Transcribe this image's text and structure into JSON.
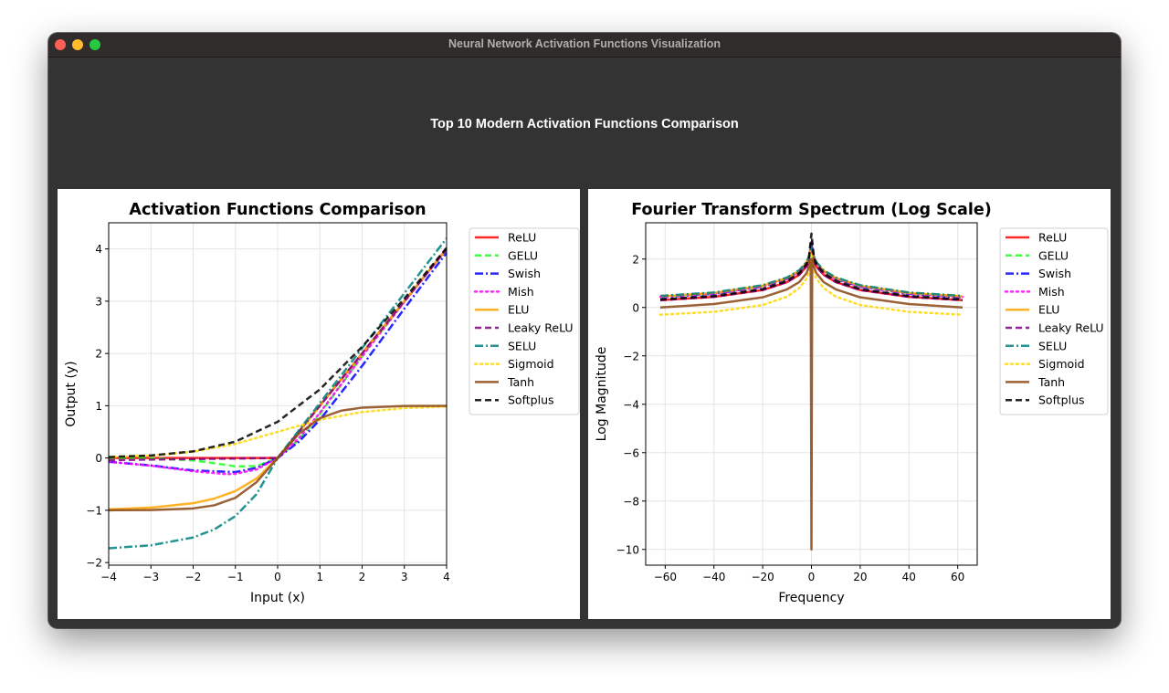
{
  "window": {
    "title": "Neural Network Activation Functions Visualization"
  },
  "header": {
    "title": "Top 10 Modern Activation Functions Comparison"
  },
  "chart_data": [
    {
      "type": "line",
      "title": "Activation Functions Comparison",
      "xlabel": "Input (x)",
      "ylabel": "Output (y)",
      "xlim": [
        -4,
        4
      ],
      "ylim": [
        -2.05,
        4.5
      ],
      "xticks": [
        "−4",
        "−3",
        "−2",
        "−1",
        "0",
        "1",
        "2",
        "3",
        "4"
      ],
      "yticks": [
        "−2",
        "−1",
        "0",
        "1",
        "2",
        "3",
        "4"
      ],
      "grid": true,
      "legend_position": "outside-right",
      "series": [
        {
          "name": "ReLU",
          "color": "#ff0000",
          "dash": "solid",
          "x": [
            -4,
            -3,
            -2,
            -1,
            0,
            1,
            2,
            3,
            4
          ],
          "y": [
            0,
            0,
            0,
            0,
            0,
            1,
            2,
            3,
            4
          ]
        },
        {
          "name": "GELU",
          "color": "#22ff22",
          "dash": "dashed",
          "x": [
            -4,
            -3,
            -2,
            -1.5,
            -1,
            -0.5,
            0,
            0.5,
            1,
            2,
            3,
            4
          ],
          "y": [
            0,
            -0.004,
            -0.045,
            -0.1,
            -0.159,
            -0.154,
            0,
            0.346,
            0.841,
            1.955,
            2.996,
            4
          ]
        },
        {
          "name": "Swish",
          "color": "#0000ff",
          "dash": "dashdot",
          "x": [
            -4,
            -3,
            -2,
            -1,
            -0.5,
            0,
            0.5,
            1,
            2,
            3,
            4
          ],
          "y": [
            -0.072,
            -0.142,
            -0.238,
            -0.269,
            -0.189,
            0,
            0.311,
            0.731,
            1.762,
            2.858,
            3.928
          ]
        },
        {
          "name": "Mish",
          "color": "#ff00ff",
          "dash": "dotted",
          "x": [
            -4,
            -3,
            -2,
            -1.2,
            -1,
            -0.5,
            0,
            0.5,
            1,
            2,
            3,
            4
          ],
          "y": [
            -0.073,
            -0.146,
            -0.253,
            -0.309,
            -0.303,
            -0.219,
            0,
            0.375,
            0.865,
            1.944,
            2.987,
            3.997
          ]
        },
        {
          "name": "ELU",
          "color": "#ffa500",
          "dash": "solid",
          "x": [
            -4,
            -3,
            -2,
            -1.5,
            -1,
            -0.5,
            0,
            1,
            2,
            3,
            4
          ],
          "y": [
            -0.982,
            -0.95,
            -0.865,
            -0.777,
            -0.632,
            -0.393,
            0,
            1,
            2,
            3,
            4
          ]
        },
        {
          "name": "Leaky ReLU",
          "color": "#800080",
          "dash": "dashed",
          "x": [
            -4,
            -2,
            0,
            1,
            2,
            3,
            4
          ],
          "y": [
            -0.04,
            -0.02,
            0,
            1,
            2,
            3,
            4
          ]
        },
        {
          "name": "SELU",
          "color": "#008080",
          "dash": "dashdot",
          "x": [
            -4,
            -3,
            -2,
            -1.5,
            -1,
            -0.5,
            0,
            1,
            2,
            3,
            4
          ],
          "y": [
            -1.726,
            -1.67,
            -1.52,
            -1.366,
            -1.111,
            -0.692,
            0,
            1.051,
            2.101,
            3.152,
            4.203
          ]
        },
        {
          "name": "Sigmoid",
          "color": "#ffd700",
          "dash": "dotted",
          "x": [
            -4,
            -3,
            -2,
            -1,
            0,
            1,
            2,
            3,
            4
          ],
          "y": [
            0.018,
            0.047,
            0.119,
            0.269,
            0.5,
            0.731,
            0.881,
            0.953,
            0.982
          ]
        },
        {
          "name": "Tanh",
          "color": "#8b4513",
          "dash": "solid",
          "x": [
            -4,
            -3,
            -2,
            -1.5,
            -1,
            -0.5,
            0,
            0.5,
            1,
            1.5,
            2,
            3,
            4
          ],
          "y": [
            -0.999,
            -0.995,
            -0.964,
            -0.905,
            -0.762,
            -0.462,
            0,
            0.462,
            0.762,
            0.905,
            0.964,
            0.995,
            0.999
          ]
        },
        {
          "name": "Softplus",
          "color": "#000000",
          "dash": "dashed",
          "x": [
            -4,
            -3,
            -2,
            -1,
            0,
            1,
            2,
            3,
            4
          ],
          "y": [
            0.018,
            0.049,
            0.127,
            0.313,
            0.693,
            1.313,
            2.127,
            3.049,
            4.018
          ]
        }
      ]
    },
    {
      "type": "line",
      "title": "Fourier Transform Spectrum (Log Scale)",
      "xlabel": "Frequency",
      "ylabel": "Log Magnitude",
      "xlim": [
        -68,
        68
      ],
      "ylim": [
        -10.65,
        3.5
      ],
      "xticks": [
        "−60",
        "−40",
        "−20",
        "0",
        "20",
        "40",
        "60"
      ],
      "yticks": [
        "−10",
        "−8",
        "−6",
        "−4",
        "−2",
        "0",
        "2"
      ],
      "grid": true,
      "legend_position": "outside-right",
      "series": [
        {
          "name": "ReLU",
          "color": "#ff0000",
          "dash": "solid",
          "x": [
            -62,
            -40,
            -20,
            -10,
            -5,
            -2,
            -1,
            0,
            1,
            2,
            5,
            10,
            20,
            40,
            62
          ],
          "y": [
            0.3,
            0.44,
            0.72,
            1.05,
            1.35,
            1.7,
            1.95,
            2.6,
            1.95,
            1.7,
            1.35,
            1.05,
            0.72,
            0.44,
            0.3
          ]
        },
        {
          "name": "GELU",
          "color": "#22ff22",
          "dash": "dashed",
          "x": [
            -62,
            -40,
            -20,
            -10,
            -5,
            -2,
            -1,
            0,
            1,
            2,
            5,
            10,
            20,
            40,
            62
          ],
          "y": [
            0.45,
            0.58,
            0.88,
            1.2,
            1.5,
            1.85,
            2.1,
            2.7,
            2.1,
            1.85,
            1.5,
            1.2,
            0.88,
            0.58,
            0.45
          ]
        },
        {
          "name": "Swish",
          "color": "#0000ff",
          "dash": "dashdot",
          "x": [
            -62,
            -40,
            -20,
            -10,
            -5,
            -2,
            -1,
            0,
            1,
            2,
            5,
            10,
            20,
            40,
            62
          ],
          "y": [
            0.42,
            0.56,
            0.86,
            1.18,
            1.48,
            1.82,
            2.05,
            2.7,
            2.05,
            1.82,
            1.48,
            1.18,
            0.86,
            0.56,
            0.42
          ]
        },
        {
          "name": "Mish",
          "color": "#ff00ff",
          "dash": "dotted",
          "x": [
            -62,
            -40,
            -20,
            -10,
            -5,
            -2,
            -1,
            0,
            1,
            2,
            5,
            10,
            20,
            40,
            62
          ],
          "y": [
            0.44,
            0.57,
            0.87,
            1.19,
            1.49,
            1.83,
            2.07,
            2.7,
            2.07,
            1.83,
            1.49,
            1.19,
            0.87,
            0.57,
            0.44
          ]
        },
        {
          "name": "ELU",
          "color": "#ffa500",
          "dash": "solid",
          "x": [
            -62,
            -40,
            -20,
            -10,
            -5,
            -2,
            -1,
            0,
            1,
            2,
            5,
            10,
            20,
            40,
            62
          ],
          "y": [
            0.46,
            0.6,
            0.9,
            1.22,
            1.52,
            1.86,
            2.1,
            2.5,
            2.1,
            1.86,
            1.52,
            1.22,
            0.9,
            0.6,
            0.46
          ]
        },
        {
          "name": "Leaky ReLU",
          "color": "#800080",
          "dash": "dashed",
          "x": [
            -62,
            -40,
            -20,
            -10,
            -5,
            -2,
            -1,
            0,
            1,
            2,
            5,
            10,
            20,
            40,
            62
          ],
          "y": [
            0.3,
            0.44,
            0.72,
            1.05,
            1.35,
            1.7,
            1.95,
            2.6,
            1.95,
            1.7,
            1.35,
            1.05,
            0.72,
            0.44,
            0.3
          ]
        },
        {
          "name": "SELU",
          "color": "#008080",
          "dash": "dashdot",
          "x": [
            -62,
            -40,
            -20,
            -10,
            -5,
            -2,
            -1,
            0,
            1,
            2,
            5,
            10,
            20,
            40,
            62
          ],
          "y": [
            0.48,
            0.62,
            0.92,
            1.24,
            1.54,
            1.88,
            2.12,
            2.55,
            2.12,
            1.88,
            1.54,
            1.24,
            0.92,
            0.62,
            0.48
          ]
        },
        {
          "name": "Sigmoid",
          "color": "#ffd700",
          "dash": "dotted",
          "x": [
            -62,
            -40,
            -20,
            -10,
            -5,
            -2,
            -1,
            0,
            1,
            2,
            5,
            10,
            20,
            40,
            62
          ],
          "y": [
            -0.3,
            -0.18,
            0.1,
            0.45,
            0.8,
            1.2,
            1.45,
            2.2,
            1.45,
            1.2,
            0.8,
            0.45,
            0.1,
            -0.18,
            -0.3
          ]
        },
        {
          "name": "Tanh",
          "color": "#8b4513",
          "dash": "solid",
          "x": [
            -62,
            -40,
            -20,
            -10,
            -5,
            -2,
            -1,
            -0.3,
            0,
            0.3,
            1,
            2,
            5,
            10,
            20,
            40,
            62
          ],
          "y": [
            0,
            0.14,
            0.42,
            0.75,
            1.05,
            1.42,
            1.7,
            2.0,
            -10,
            2.0,
            1.7,
            1.42,
            1.05,
            0.75,
            0.42,
            0.14,
            0
          ]
        },
        {
          "name": "Softplus",
          "color": "#000000",
          "dash": "dashed",
          "x": [
            -62,
            -40,
            -20,
            -10,
            -5,
            -2,
            -1,
            0,
            1,
            2,
            5,
            10,
            20,
            40,
            62
          ],
          "y": [
            0.33,
            0.47,
            0.76,
            1.1,
            1.42,
            1.8,
            2.08,
            3.05,
            2.08,
            1.8,
            1.42,
            1.1,
            0.76,
            0.47,
            0.33
          ]
        }
      ]
    }
  ]
}
